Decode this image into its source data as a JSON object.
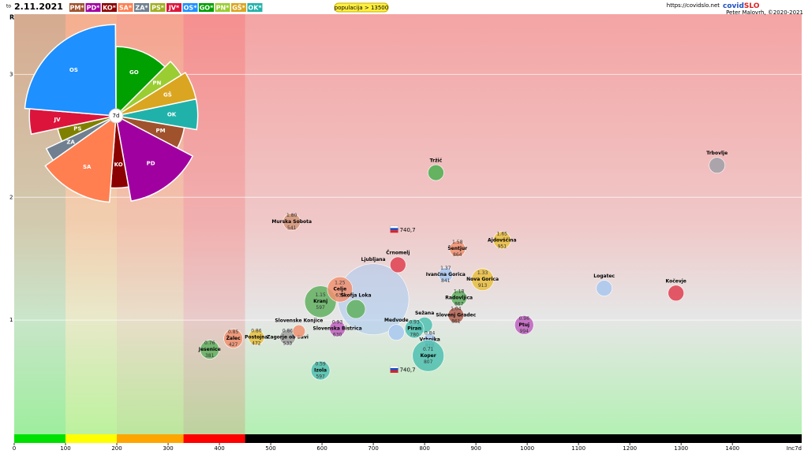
{
  "header": {
    "prefix": "to",
    "date": "2.11.2021",
    "buttons": [
      {
        "label": "PM*",
        "color": "#a0522d"
      },
      {
        "label": "PD*",
        "color": "#a000a0"
      },
      {
        "label": "KO*",
        "color": "#8b0000"
      },
      {
        "label": "SA*",
        "color": "#ff7f50"
      },
      {
        "label": "ZA*",
        "color": "#708090"
      },
      {
        "label": "PS*",
        "color": "#a0b020"
      },
      {
        "label": "JV*",
        "color": "#dc143c"
      },
      {
        "label": "OS*",
        "color": "#1e90ff"
      },
      {
        "label": "GO*",
        "color": "#00a000"
      },
      {
        "label": "PN*",
        "color": "#9acd32"
      },
      {
        "label": "GŠ*",
        "color": "#daa520"
      },
      {
        "label": "OK*",
        "color": "#20b2aa"
      }
    ],
    "filter": "populacija > 13500",
    "url": "https://covidslo.net",
    "logo_a": "covid",
    "logo_b": "SLO",
    "author": "Peter Malovrh, ©2020-2021"
  },
  "chart_data": [
    {
      "type": "bubble",
      "ylabel": "R",
      "xlabel": "Inc7d",
      "xlim": [
        0,
        1535
      ],
      "ylim": [
        0,
        3.49
      ],
      "xticks": [
        0,
        100,
        200,
        300,
        400,
        500,
        600,
        700,
        800,
        900,
        1000,
        1100,
        1200,
        1300,
        1400
      ],
      "yticks": [
        1,
        2,
        3
      ],
      "zones": [
        {
          "from": 0,
          "to": 100,
          "color": "#00e000"
        },
        {
          "from": 100,
          "to": 200,
          "color": "#ffff00"
        },
        {
          "from": 200,
          "to": 330,
          "color": "#ffa500"
        },
        {
          "from": 330,
          "to": 450,
          "color": "#ff0000"
        },
        {
          "from": 450,
          "to": 1535,
          "color": "#000000"
        }
      ],
      "markers": [
        {
          "x": {
            "value": 740.7,
            "label": "740,7"
          },
          "r": 1.74
        },
        {
          "x": {
            "value": 740.7,
            "label": "740,7"
          },
          "r": 0.6
        }
      ],
      "points": [
        {
          "name": "Ljubljana",
          "inc": 700,
          "r": 1.17,
          "size": 45,
          "color": "#a8c8f0"
        },
        {
          "name": "Trbovlje",
          "inc": 1370,
          "r": 2.26,
          "size": 10,
          "color": "#a0a0a8"
        },
        {
          "name": "Tržič",
          "inc": 822,
          "r": 2.2,
          "size": 10,
          "color": "#4caf50"
        },
        {
          "name": "Murska Sobota",
          "inc": 541,
          "r": 1.8,
          "r_label": "1.80",
          "size": 11,
          "color": "#d2967a"
        },
        {
          "name": "Kočevje",
          "inc": 1290,
          "r": 1.22,
          "size": 10,
          "color": "#e04050"
        },
        {
          "name": "Logatec",
          "inc": 1150,
          "r": 1.26,
          "size": 10,
          "color": "#a8c8f0"
        },
        {
          "name": "Ptuj",
          "inc": 994,
          "r": 0.96,
          "r_label": "0.96",
          "size": 12,
          "color": "#c060c0"
        },
        {
          "name": "Šentjur",
          "inc": 864,
          "r": 1.58,
          "r_label": "1.58",
          "size": 10,
          "color": "#f09070"
        },
        {
          "name": "Ajdovščina",
          "inc": 951,
          "r": 1.65,
          "r_label": "1.65",
          "size": 11,
          "color": "#e8c040"
        },
        {
          "name": "Ivančna Gorica",
          "inc": 841,
          "r": 1.37,
          "r_label": "1.37",
          "size": 9,
          "color": "#a8c8f0"
        },
        {
          "name": "Nova Gorica",
          "inc": 913,
          "r": 1.33,
          "r_label": "1.33",
          "size": 14,
          "color": "#e8c040"
        },
        {
          "name": "Radovljica",
          "inc": 867,
          "r": 1.18,
          "r_label": "1.18",
          "size": 10,
          "color": "#60b060"
        },
        {
          "name": "Slovenj Gradec",
          "inc": 861,
          "r": 1.04,
          "r_label": "1.04",
          "size": 10,
          "color": "#b06050"
        },
        {
          "name": "Sežana",
          "inc": 800,
          "r": 0.96,
          "size": 10,
          "color": "#50c0b0"
        },
        {
          "name": "Vrhnika",
          "inc": 810,
          "r": 0.84,
          "r_label": "0.84",
          "size": 8,
          "color": "#a8c8f0"
        },
        {
          "name": "Koper",
          "inc": 807,
          "r": 0.71,
          "r_label": "0.71",
          "size": 20,
          "color": "#50c0b0"
        },
        {
          "name": "Izola",
          "inc": 597,
          "r": 0.59,
          "r_label": "0.59",
          "size": 12,
          "color": "#50c0b0"
        },
        {
          "name": "Jesenice",
          "inc": 381,
          "r": 0.76,
          "r_label": "0.76",
          "size": 12,
          "color": "#60b060"
        },
        {
          "name": "Žalec",
          "inc": 427,
          "r": 0.85,
          "r_label": "0.85",
          "size": 12,
          "color": "#f09070"
        },
        {
          "name": "Postojna",
          "inc": 472,
          "r": 0.86,
          "r_label": "0.86",
          "size": 10,
          "color": "#e8c040"
        },
        {
          "name": "Zagorje ob Savi",
          "inc": 533,
          "r": 0.86,
          "r_label": "0.86",
          "size": 10,
          "color": "#a0a0a0"
        },
        {
          "name": "Slovenske Konjice",
          "inc": 555,
          "r": 0.91,
          "size": 8,
          "color": "#f09070"
        },
        {
          "name": "Slovenska Bistrica",
          "inc": 630,
          "r": 0.93,
          "r_label": "0.93",
          "size": 10,
          "color": "#c060c0"
        },
        {
          "name": "Kranj",
          "inc": 597,
          "r": 1.15,
          "r_label": "1.15",
          "size": 20,
          "color": "#60b060"
        },
        {
          "name": "Celje",
          "inc": 635,
          "r": 1.25,
          "r_label": "1.25",
          "size": 16,
          "color": "#f09070"
        },
        {
          "name": "Škofja Loka",
          "inc": 666,
          "r": 1.09,
          "size": 12,
          "color": "#60b060"
        },
        {
          "name": "Črnomelj",
          "inc": 748,
          "r": 1.45,
          "size": 10,
          "color": "#e04050"
        },
        {
          "name": "Piran",
          "inc": 780,
          "r": 0.93,
          "r_label": "0.93",
          "size": 12,
          "color": "#50c0b0"
        },
        {
          "name": "Medvode",
          "inc": 745,
          "r": 0.9,
          "size": 10,
          "color": "#a8c8f0"
        }
      ]
    },
    {
      "type": "polar-area",
      "center_label": "7d",
      "series": [
        {
          "name": "GO",
          "share": 12.5,
          "radius": 0.72,
          "color": "#00a000"
        },
        {
          "name": "PN",
          "share": 3.6,
          "radius": 0.8,
          "color": "#9acd32"
        },
        {
          "name": "GŠ",
          "share": 5.6,
          "radius": 0.85,
          "color": "#daa520"
        },
        {
          "name": "OK",
          "share": 6,
          "radius": 0.85,
          "color": "#20b2aa"
        },
        {
          "name": "PM",
          "share": 5,
          "radius": 0.72,
          "color": "#a0522d"
        },
        {
          "name": "PD",
          "share": 14.5,
          "radius": 0.9,
          "color": "#a000a0"
        },
        {
          "name": "KO",
          "share": 4,
          "radius": 0.75,
          "color": "#8b0000"
        },
        {
          "name": "SA",
          "share": 14,
          "radius": 0.9,
          "color": "#ff7f50"
        },
        {
          "name": "ZA",
          "share": 2.8,
          "radius": 0.8,
          "color": "#708090"
        },
        {
          "name": "PS",
          "share": 3.6,
          "radius": 0.62,
          "color": "#808000"
        },
        {
          "name": "JV",
          "share": 4.7,
          "radius": 0.9,
          "color": "#dc143c"
        },
        {
          "name": "OS",
          "share": 23.6,
          "radius": 0.95,
          "color": "#1e90ff"
        }
      ]
    }
  ]
}
